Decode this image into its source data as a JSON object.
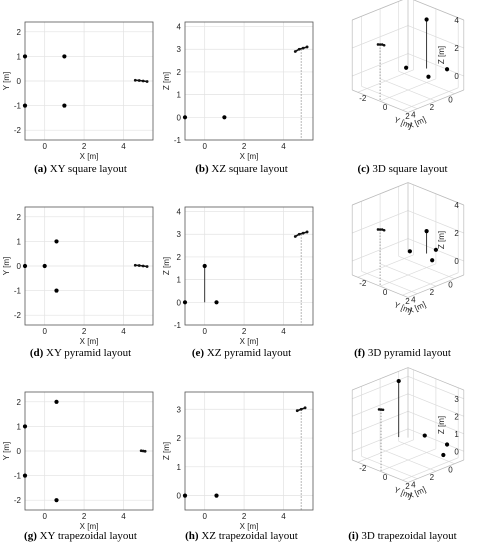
{
  "captions": [
    {
      "tag": "(a)",
      "text": "XY square layout"
    },
    {
      "tag": "(b)",
      "text": "XZ square layout"
    },
    {
      "tag": "(c)",
      "text": "3D square layout"
    },
    {
      "tag": "(d)",
      "text": "XY pyramid layout"
    },
    {
      "tag": "(e)",
      "text": "XZ pyramid layout"
    },
    {
      "tag": "(f)",
      "text": "3D pyramid layout"
    },
    {
      "tag": "(g)",
      "text": "XY trapezoidal layout"
    },
    {
      "tag": "(h)",
      "text": "XZ trapezoidal layout"
    },
    {
      "tag": "(i)",
      "text": "3D trapezoidal layout"
    }
  ],
  "chart_data": [
    {
      "type": "scatter",
      "view": "XY",
      "xlabel": "X [m]",
      "ylabel": "Y [m]",
      "xlim": [
        -1,
        5.5
      ],
      "ylim": [
        -2.4,
        2.4
      ],
      "xticks": [
        0,
        2,
        4
      ],
      "yticks": [
        -2,
        -1,
        0,
        1,
        2
      ],
      "points": [
        [
          -1,
          1
        ],
        [
          1,
          1
        ],
        [
          -1,
          -1
        ],
        [
          1,
          -1
        ]
      ],
      "trajectory": [
        [
          4.6,
          0.03
        ],
        [
          4.8,
          0.02
        ],
        [
          5.0,
          0.0
        ],
        [
          5.2,
          -0.02
        ]
      ]
    },
    {
      "type": "scatter",
      "view": "XZ",
      "xlabel": "X [m]",
      "ylabel": "Z [m]",
      "xlim": [
        -1,
        5.5
      ],
      "ylim": [
        -1,
        4.2
      ],
      "xticks": [
        0,
        2,
        4
      ],
      "yticks": [
        -1,
        0,
        1,
        2,
        3,
        4
      ],
      "points": [
        [
          -1,
          0
        ],
        [
          1,
          0
        ]
      ],
      "trajectory": [
        [
          4.6,
          2.9
        ],
        [
          4.8,
          3.0
        ],
        [
          5.0,
          3.05
        ],
        [
          5.2,
          3.1
        ]
      ],
      "drop": [
        4.9,
        3.0
      ]
    },
    {
      "type": "scatter3d",
      "xlabel": "X [m]",
      "ylabel": "Y [m]",
      "zlabel": "Z [m]",
      "xlim": [
        -1,
        5
      ],
      "ylim": [
        -2.5,
        2.5
      ],
      "zlim": [
        -1,
        4
      ],
      "xticks": [
        0,
        2,
        4
      ],
      "yticks": [
        -2,
        0,
        2
      ],
      "zticks": [
        0,
        2,
        4
      ],
      "points": [
        [
          -1,
          1,
          0
        ],
        [
          1,
          -1,
          0
        ],
        [
          1,
          1,
          0
        ],
        [
          0,
          0,
          3.5
        ]
      ],
      "stems": [
        [
          0,
          0,
          3.5
        ]
      ],
      "trajectory": [
        [
          4.6,
          0.03,
          2.9
        ],
        [
          4.8,
          0.02,
          3.0
        ],
        [
          5.0,
          0.0,
          3.05
        ],
        [
          5.2,
          -0.02,
          3.1
        ]
      ]
    },
    {
      "type": "scatter",
      "view": "XY",
      "xlabel": "X [m]",
      "ylabel": "Y [m]",
      "xlim": [
        -1,
        5.5
      ],
      "ylim": [
        -2.4,
        2.4
      ],
      "xticks": [
        0,
        2,
        4
      ],
      "yticks": [
        -2,
        -1,
        0,
        1,
        2
      ],
      "points": [
        [
          -1,
          0
        ],
        [
          0,
          0
        ],
        [
          0.6,
          1
        ],
        [
          0.6,
          -1
        ]
      ],
      "trajectory": [
        [
          4.6,
          0.03
        ],
        [
          4.8,
          0.02
        ],
        [
          5.0,
          0.0
        ],
        [
          5.2,
          -0.02
        ]
      ]
    },
    {
      "type": "scatter",
      "view": "XZ",
      "xlabel": "X [m]",
      "ylabel": "Z [m]",
      "xlim": [
        -1,
        5.5
      ],
      "ylim": [
        -1,
        4.2
      ],
      "xticks": [
        0,
        2,
        4
      ],
      "yticks": [
        -1,
        0,
        1,
        2,
        3,
        4
      ],
      "points": [
        [
          -1,
          0
        ],
        [
          0,
          1.6
        ],
        [
          0.6,
          0
        ]
      ],
      "stems": [
        [
          0,
          1.6
        ]
      ],
      "trajectory": [
        [
          4.6,
          2.9
        ],
        [
          4.8,
          3.0
        ],
        [
          5.0,
          3.05
        ],
        [
          5.2,
          3.1
        ]
      ],
      "drop": [
        4.9,
        3.0
      ]
    },
    {
      "type": "scatter3d",
      "xlabel": "X [m]",
      "ylabel": "Y [m]",
      "zlabel": "Z [m]",
      "xlim": [
        -1,
        5
      ],
      "ylim": [
        -2.5,
        2.5
      ],
      "zlim": [
        -1,
        4
      ],
      "xticks": [
        0,
        2,
        4
      ],
      "yticks": [
        -2,
        0,
        2
      ],
      "zticks": [
        0,
        2,
        4
      ],
      "points": [
        [
          -1,
          0,
          0
        ],
        [
          0,
          0,
          1.6
        ],
        [
          0.6,
          1,
          0
        ],
        [
          0.6,
          -1,
          0
        ]
      ],
      "stems": [
        [
          0,
          0,
          1.6
        ]
      ],
      "trajectory": [
        [
          4.6,
          0.03,
          2.9
        ],
        [
          4.8,
          0.02,
          3.0
        ],
        [
          5.0,
          0.0,
          3.05
        ],
        [
          5.2,
          -0.02,
          3.1
        ]
      ]
    },
    {
      "type": "scatter",
      "view": "XY",
      "xlabel": "X [m]",
      "ylabel": "Y [m]",
      "xlim": [
        -1,
        5.5
      ],
      "ylim": [
        -2.4,
        2.4
      ],
      "xticks": [
        0,
        2,
        4
      ],
      "yticks": [
        -2,
        -1,
        0,
        1,
        2
      ],
      "points": [
        [
          -1,
          1
        ],
        [
          -1,
          -1
        ],
        [
          0.6,
          2
        ],
        [
          0.6,
          -2
        ]
      ],
      "trajectory": [
        [
          4.9,
          0.01
        ],
        [
          5.0,
          0.0
        ],
        [
          5.1,
          -0.01
        ]
      ]
    },
    {
      "type": "scatter",
      "view": "XZ",
      "xlabel": "X [m]",
      "ylabel": "Z [m]",
      "xlim": [
        -1,
        5.5
      ],
      "ylim": [
        -0.5,
        3.6
      ],
      "xticks": [
        0,
        2,
        4
      ],
      "yticks": [
        0,
        1,
        2,
        3
      ],
      "points": [
        [
          -1,
          0
        ],
        [
          0.6,
          0
        ]
      ],
      "trajectory": [
        [
          4.7,
          2.95
        ],
        [
          4.9,
          3.0
        ],
        [
          5.1,
          3.05
        ]
      ],
      "drop": [
        4.9,
        3.0
      ]
    },
    {
      "type": "scatter3d",
      "xlabel": "X [m]",
      "ylabel": "Y [m]",
      "zlabel": "Z [m]",
      "xlim": [
        -1,
        5
      ],
      "ylim": [
        -2.5,
        2.5
      ],
      "zlim": [
        -0.5,
        3.5
      ],
      "xticks": [
        0,
        2,
        4
      ],
      "yticks": [
        -2,
        0,
        2
      ],
      "zticks": [
        0,
        1,
        2,
        3
      ],
      "points": [
        [
          -1,
          1,
          0
        ],
        [
          -1,
          -1,
          0
        ],
        [
          0.6,
          2,
          0
        ],
        [
          0.6,
          -2,
          3.2
        ]
      ],
      "stems": [
        [
          0.6,
          -2,
          3.2
        ]
      ],
      "trajectory": [
        [
          4.7,
          0.01,
          2.95
        ],
        [
          4.9,
          0.0,
          3.0
        ],
        [
          5.1,
          -0.01,
          3.05
        ]
      ]
    }
  ]
}
